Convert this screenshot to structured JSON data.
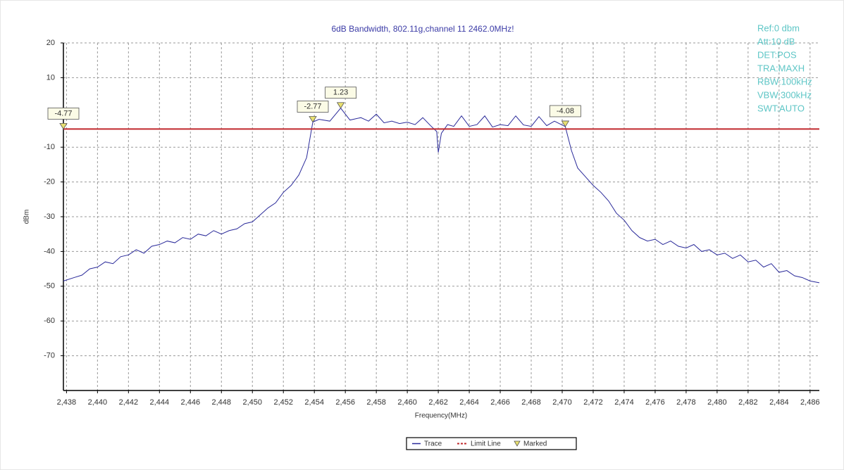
{
  "chart_data": {
    "type": "line",
    "title": "6dB Bandwidth, 802.11g,channel 11  2462.0MHz!",
    "xlabel": "Frequency(MHz)",
    "ylabel": "dBm",
    "info": [
      "Ref:0 dbm",
      "Att:10 dB",
      "DET:POS",
      "TRA:MAXH",
      "RBW:100kHz",
      "VBW:300kHz",
      "SWT:AUTO"
    ],
    "xlim": [
      2437.8,
      2486.6
    ],
    "ylim": [
      -80,
      20
    ],
    "xticks": [
      {
        "value": 2438,
        "label": "2,438"
      },
      {
        "value": 2440,
        "label": "2,440"
      },
      {
        "value": 2442,
        "label": "2,442"
      },
      {
        "value": 2444,
        "label": "2,444"
      },
      {
        "value": 2446,
        "label": "2,446"
      },
      {
        "value": 2448,
        "label": "2,448"
      },
      {
        "value": 2450,
        "label": "2,450"
      },
      {
        "value": 2452,
        "label": "2,452"
      },
      {
        "value": 2454,
        "label": "2,454"
      },
      {
        "value": 2456,
        "label": "2,456"
      },
      {
        "value": 2458,
        "label": "2,458"
      },
      {
        "value": 2460,
        "label": "2,460"
      },
      {
        "value": 2462,
        "label": "2,462"
      },
      {
        "value": 2464,
        "label": "2,464"
      },
      {
        "value": 2466,
        "label": "2,466"
      },
      {
        "value": 2468,
        "label": "2,468"
      },
      {
        "value": 2470,
        "label": "2,470"
      },
      {
        "value": 2472,
        "label": "2,472"
      },
      {
        "value": 2474,
        "label": "2,474"
      },
      {
        "value": 2476,
        "label": "2,476"
      },
      {
        "value": 2478,
        "label": "2,478"
      },
      {
        "value": 2480,
        "label": "2,480"
      },
      {
        "value": 2482,
        "label": "2,482"
      },
      {
        "value": 2484,
        "label": "2,484"
      },
      {
        "value": 2486,
        "label": "2,486"
      }
    ],
    "yticks": [
      20,
      10,
      -10,
      -20,
      -30,
      -40,
      -50,
      -60,
      -70
    ],
    "grid": true,
    "series": [
      {
        "name": "Trace",
        "color": "#2a2a9a",
        "x": [
          2437.8,
          2438.5,
          2439,
          2439.5,
          2440,
          2440.5,
          2441,
          2441.5,
          2442,
          2442.5,
          2443,
          2443.5,
          2444,
          2444.5,
          2445,
          2445.5,
          2446,
          2446.5,
          2447,
          2447.5,
          2448,
          2448.5,
          2449,
          2449.5,
          2450,
          2450.5,
          2451,
          2451.5,
          2452,
          2452.5,
          2453,
          2453.5,
          2453.9,
          2454.3,
          2455,
          2455.7,
          2456.3,
          2457,
          2457.5,
          2458,
          2458.5,
          2459,
          2459.5,
          2460,
          2460.5,
          2461,
          2461.5,
          2461.9,
          2462,
          2462.2,
          2462.6,
          2463,
          2463.5,
          2464,
          2464.5,
          2465,
          2465.5,
          2466,
          2466.5,
          2467,
          2467.5,
          2468,
          2468.5,
          2469,
          2469.5,
          2470.2,
          2470.6,
          2471,
          2471.5,
          2472,
          2472.5,
          2473,
          2473.5,
          2474,
          2474.5,
          2475,
          2475.5,
          2476,
          2476.5,
          2477,
          2477.5,
          2478,
          2478.5,
          2479,
          2479.5,
          2480,
          2480.5,
          2481,
          2481.5,
          2482,
          2482.5,
          2483,
          2483.5,
          2484,
          2484.5,
          2485,
          2485.5,
          2486,
          2486.6
        ],
        "values": [
          -48.5,
          -47.5,
          -46.8,
          -45,
          -44.5,
          -43,
          -43.5,
          -41.5,
          -41,
          -39.5,
          -40.5,
          -38.5,
          -38,
          -37,
          -37.5,
          -36,
          -36.5,
          -35,
          -35.5,
          -34,
          -35,
          -34,
          -33.5,
          -32,
          -31.5,
          -29.5,
          -27.5,
          -26,
          -23,
          -21,
          -18,
          -13,
          -2.77,
          -2,
          -2.5,
          1.23,
          -2.2,
          -1.5,
          -2.5,
          -0.5,
          -3,
          -2.5,
          -3.2,
          -2.8,
          -3.5,
          -1.5,
          -3.8,
          -5.5,
          -11.5,
          -6,
          -3.5,
          -4,
          -1,
          -4,
          -3.5,
          -1,
          -4.2,
          -3.5,
          -3.8,
          -1,
          -3.6,
          -4,
          -1.2,
          -3.8,
          -2.5,
          -4.08,
          -11,
          -16,
          -18.5,
          -21,
          -23,
          -25.5,
          -29,
          -31,
          -34,
          -36,
          -37,
          -36.5,
          -38,
          -37,
          -38.5,
          -39,
          -38,
          -40,
          -39.5,
          -41,
          -40.5,
          -42,
          -41,
          -43,
          -42.5,
          -44.5,
          -43.5,
          -46,
          -45.5,
          -47,
          -47.5,
          -48.5,
          -49
        ]
      },
      {
        "name": "Limit Line",
        "color": "#c0282d",
        "value": -4.77
      },
      {
        "name": "Marked",
        "color": "#e8e070",
        "x": [
          2437.8,
          2453.9,
          2455.7,
          2470.2
        ],
        "values": [
          -4.77,
          -2.77,
          1.23,
          -4.08
        ]
      }
    ]
  }
}
